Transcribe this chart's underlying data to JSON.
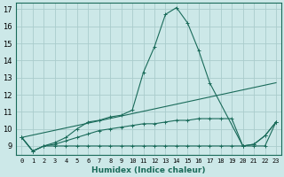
{
  "xlabel": "Humidex (Indice chaleur)",
  "background_color": "#cce8e8",
  "grid_color": "#aacccc",
  "line_color": "#1a6b5a",
  "xlim": [
    -0.5,
    23.5
  ],
  "ylim": [
    8.5,
    17.4
  ],
  "xticks": [
    0,
    1,
    2,
    3,
    4,
    5,
    6,
    7,
    8,
    9,
    10,
    11,
    12,
    13,
    14,
    15,
    16,
    17,
    18,
    19,
    20,
    21,
    22,
    23
  ],
  "yticks": [
    9,
    10,
    11,
    12,
    13,
    14,
    15,
    16,
    17
  ],
  "lines": [
    {
      "x": [
        0,
        1,
        2,
        3,
        4,
        5,
        6,
        7,
        8,
        9,
        10,
        11,
        12,
        13,
        14,
        15,
        16,
        17,
        20,
        21,
        22,
        23
      ],
      "y": [
        9.5,
        8.7,
        9.0,
        9.2,
        9.5,
        10.0,
        10.4,
        10.5,
        10.7,
        10.8,
        11.1,
        13.3,
        14.8,
        16.7,
        17.1,
        16.2,
        14.6,
        12.7,
        9.0,
        9.1,
        9.6,
        10.4
      ],
      "marker": "+"
    },
    {
      "x": [
        0,
        23
      ],
      "y": [
        9.5,
        12.7
      ],
      "marker": null
    },
    {
      "x": [
        0,
        1,
        2,
        3,
        4,
        5,
        6,
        7,
        8,
        9,
        10,
        11,
        12,
        13,
        14,
        15,
        16,
        17,
        18,
        19,
        20,
        21,
        22,
        23
      ],
      "y": [
        9.5,
        8.7,
        9.0,
        9.1,
        9.3,
        9.5,
        9.7,
        9.9,
        10.0,
        10.1,
        10.2,
        10.3,
        10.3,
        10.4,
        10.5,
        10.5,
        10.6,
        10.6,
        10.6,
        10.6,
        9.0,
        9.1,
        9.6,
        10.4
      ],
      "marker": "+"
    },
    {
      "x": [
        0,
        1,
        2,
        3,
        4,
        5,
        6,
        7,
        8,
        9,
        10,
        11,
        12,
        13,
        14,
        15,
        16,
        17,
        18,
        19,
        20,
        21,
        22,
        23
      ],
      "y": [
        9.5,
        8.7,
        9.0,
        9.0,
        9.0,
        9.0,
        9.0,
        9.0,
        9.0,
        9.0,
        9.0,
        9.0,
        9.0,
        9.0,
        9.0,
        9.0,
        9.0,
        9.0,
        9.0,
        9.0,
        9.0,
        9.0,
        9.0,
        10.4
      ],
      "marker": "+"
    }
  ]
}
